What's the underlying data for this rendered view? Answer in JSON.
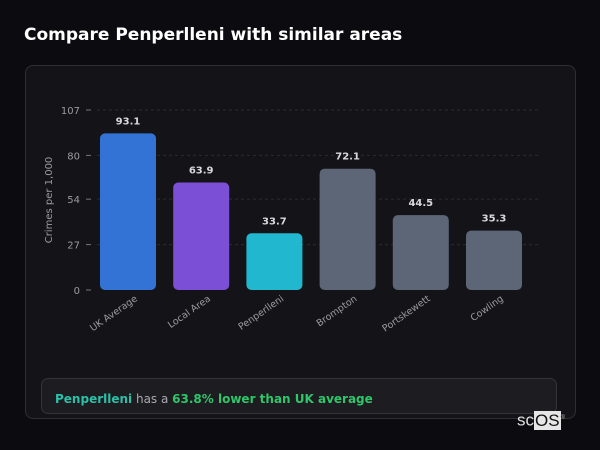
{
  "title": "Compare Penperlleni with similar areas",
  "chart_data": {
    "type": "bar",
    "title": "Compare Penperlleni with similar areas",
    "xlabel": "",
    "ylabel": "Crimes per 1,000",
    "ylim": [
      0,
      107
    ],
    "yticks": [
      0,
      27,
      54,
      80,
      107
    ],
    "grid": true,
    "categories": [
      "UK Average",
      "Local Area",
      "Penperlleni",
      "Brompton",
      "Portskewett",
      "Cowling"
    ],
    "values": [
      93.1,
      63.9,
      33.7,
      72.1,
      44.5,
      35.3
    ],
    "value_labels": [
      "93.1",
      "63.9",
      "33.7",
      "72.1",
      "44.5",
      "35.3"
    ],
    "colors": [
      "#3373d6",
      "#7b4fd6",
      "#21b8cf",
      "#5c6677",
      "#5c6677",
      "#5c6677"
    ]
  },
  "summary": {
    "area": "Penperlleni",
    "middle": " has a ",
    "comparison": "63.8% lower than UK average",
    "area_color": "#2dc0a8",
    "comparison_color": "#2fc66a"
  },
  "logo": {
    "text_a": "sc",
    "text_b": "OS",
    "mark": "®"
  }
}
